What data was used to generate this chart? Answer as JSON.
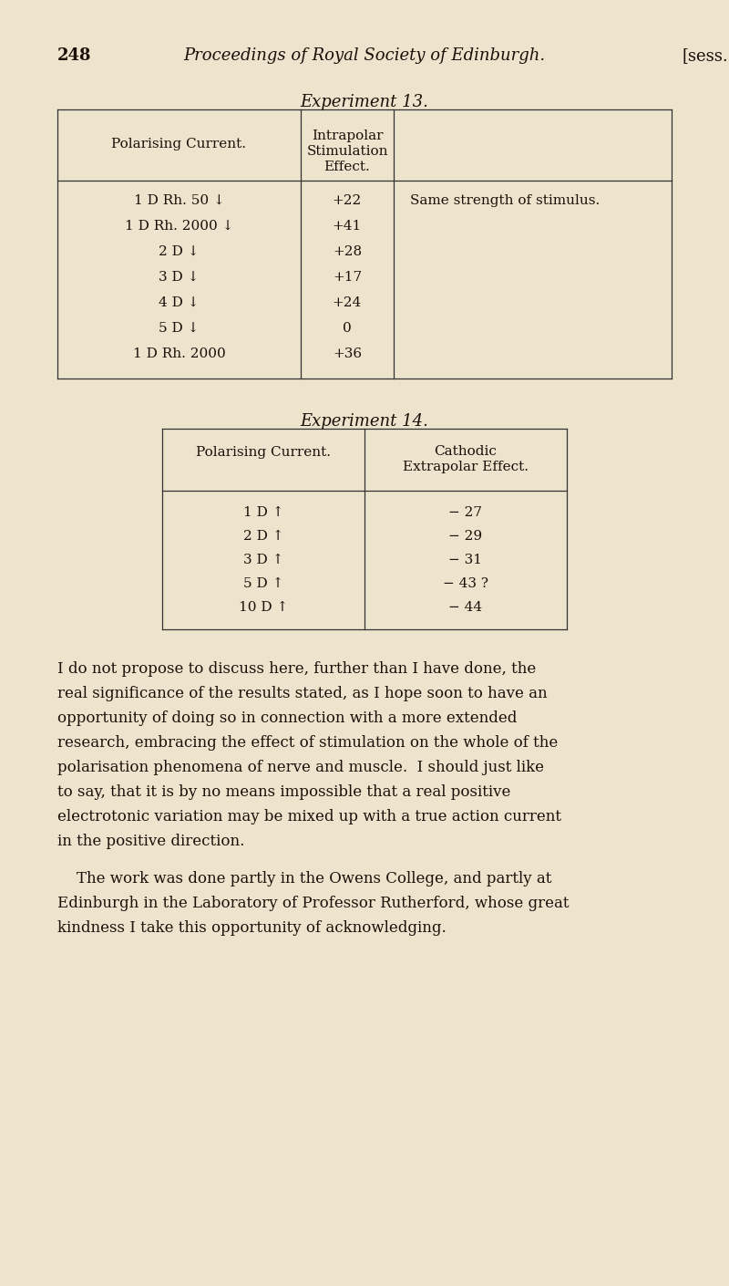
{
  "bg_color": "#ede4ce",
  "text_color": "#1a1008",
  "page_number": "248",
  "header_title": "Proceedings of Royal Society of Edinburgh.",
  "header_right": "[sess.",
  "exp13_title": "Experiment 13.",
  "exp13_col1_header": "Polarising Current.",
  "exp13_col2_header_lines": [
    "Intrapolar",
    "Stimulation",
    "Effect."
  ],
  "exp13_col3_header": "",
  "exp13_rows": [
    [
      "1 D Rh. 50 ↓",
      "+22",
      "Same strength of stimulus."
    ],
    [
      "1 D Rh. 2000 ↓",
      "+41",
      ""
    ],
    [
      "2 D ↓",
      "+28",
      ""
    ],
    [
      "3 D ↓",
      "+17",
      ""
    ],
    [
      "4 D ↓",
      "+24",
      ""
    ],
    [
      "5 D ↓",
      "0",
      ""
    ],
    [
      "1 D Rh. 2000",
      "+36",
      ""
    ]
  ],
  "exp14_title": "Experiment 14.",
  "exp14_col1_header": "Polarising Current.",
  "exp14_col2_header_lines": [
    "Cathodic",
    "Extrapolar Effect."
  ],
  "exp14_rows": [
    [
      "1 D ↑",
      "− 27"
    ],
    [
      "2 D ↑",
      "− 29"
    ],
    [
      "3 D ↑",
      "− 31"
    ],
    [
      "5 D ↑",
      "− 43 ?"
    ],
    [
      "10 D ↑",
      "− 44"
    ]
  ],
  "para1_lines": [
    "I do not propose to discuss here, further than I have done, the",
    "real significance of the results stated, as I hope soon to have an",
    "opportunity of doing so in connection with a more extended",
    "research, embracing the effect of stimulation on the whole of the",
    "polarisation phenomena of nerve and muscle.  I should just like",
    "to say, that it is by no means impossible that a real positive",
    "electrotonic variation may be mixed up with a true action current",
    "in the positive direction."
  ],
  "para2_lines": [
    "    The work was done partly in the Owens College, and partly at",
    "Edinburgh in the Laboratory of Professor Rutherford, whose great",
    "kindness I take this opportunity of acknowledging."
  ],
  "fig_width": 8.0,
  "fig_height": 14.1,
  "dpi": 100
}
